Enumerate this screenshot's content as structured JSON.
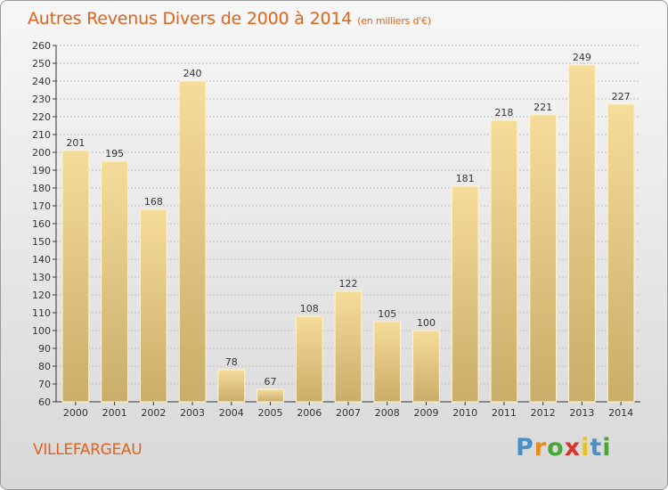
{
  "chart_data": {
    "type": "bar",
    "title": "Autres Revenus Divers de 2000 à 2014",
    "subtitle": "(en milliers d'€)",
    "categories": [
      "2000",
      "2001",
      "2002",
      "2003",
      "2004",
      "2005",
      "2006",
      "2007",
      "2008",
      "2009",
      "2010",
      "2011",
      "2012",
      "2013",
      "2014"
    ],
    "values": [
      201,
      195,
      168,
      240,
      78,
      67,
      108,
      122,
      105,
      100,
      181,
      218,
      221,
      249,
      227
    ],
    "ylim": [
      60,
      260
    ],
    "ytick_step": 10,
    "grid": true,
    "xlabel": "",
    "ylabel": "",
    "colors": {
      "bar_top": "#f6dc9a",
      "bar_bottom": "#c9ad69",
      "bar_edge": "#fff4c9",
      "grid": "#bdbdbd",
      "axis": "#333333"
    }
  },
  "footer": {
    "commune": "VILLEFARGEAU",
    "logo_letters": [
      "P",
      "r",
      "o",
      "x",
      "i",
      "t",
      "i"
    ],
    "logo_colors": [
      "#4a90c8",
      "#e98a1f",
      "#4aa63a",
      "#d9342b",
      "#e9c21f",
      "#4a90c8",
      "#4aa63a"
    ]
  }
}
